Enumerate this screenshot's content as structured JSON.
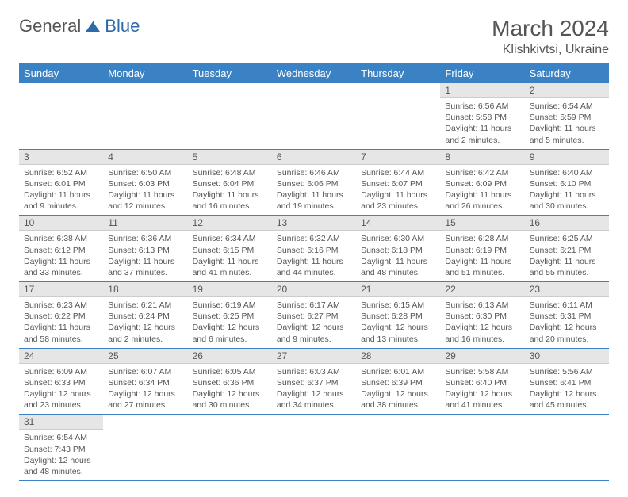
{
  "logo": {
    "text1": "General",
    "text2": "Blue"
  },
  "title": "March 2024",
  "location": "Klishkivtsi, Ukraine",
  "colors": {
    "header_bg": "#3b82c4",
    "header_text": "#ffffff",
    "daynum_bg": "#e6e6e6",
    "text": "#555555",
    "row_border": "#3b82c4",
    "logo_blue": "#2f6aa8"
  },
  "weekdays": [
    "Sunday",
    "Monday",
    "Tuesday",
    "Wednesday",
    "Thursday",
    "Friday",
    "Saturday"
  ],
  "first_day_index": 5,
  "days": [
    {
      "n": 1,
      "sunrise": "6:56 AM",
      "sunset": "5:58 PM",
      "daylight": "11 hours and 2 minutes."
    },
    {
      "n": 2,
      "sunrise": "6:54 AM",
      "sunset": "5:59 PM",
      "daylight": "11 hours and 5 minutes."
    },
    {
      "n": 3,
      "sunrise": "6:52 AM",
      "sunset": "6:01 PM",
      "daylight": "11 hours and 9 minutes."
    },
    {
      "n": 4,
      "sunrise": "6:50 AM",
      "sunset": "6:03 PM",
      "daylight": "11 hours and 12 minutes."
    },
    {
      "n": 5,
      "sunrise": "6:48 AM",
      "sunset": "6:04 PM",
      "daylight": "11 hours and 16 minutes."
    },
    {
      "n": 6,
      "sunrise": "6:46 AM",
      "sunset": "6:06 PM",
      "daylight": "11 hours and 19 minutes."
    },
    {
      "n": 7,
      "sunrise": "6:44 AM",
      "sunset": "6:07 PM",
      "daylight": "11 hours and 23 minutes."
    },
    {
      "n": 8,
      "sunrise": "6:42 AM",
      "sunset": "6:09 PM",
      "daylight": "11 hours and 26 minutes."
    },
    {
      "n": 9,
      "sunrise": "6:40 AM",
      "sunset": "6:10 PM",
      "daylight": "11 hours and 30 minutes."
    },
    {
      "n": 10,
      "sunrise": "6:38 AM",
      "sunset": "6:12 PM",
      "daylight": "11 hours and 33 minutes."
    },
    {
      "n": 11,
      "sunrise": "6:36 AM",
      "sunset": "6:13 PM",
      "daylight": "11 hours and 37 minutes."
    },
    {
      "n": 12,
      "sunrise": "6:34 AM",
      "sunset": "6:15 PM",
      "daylight": "11 hours and 41 minutes."
    },
    {
      "n": 13,
      "sunrise": "6:32 AM",
      "sunset": "6:16 PM",
      "daylight": "11 hours and 44 minutes."
    },
    {
      "n": 14,
      "sunrise": "6:30 AM",
      "sunset": "6:18 PM",
      "daylight": "11 hours and 48 minutes."
    },
    {
      "n": 15,
      "sunrise": "6:28 AM",
      "sunset": "6:19 PM",
      "daylight": "11 hours and 51 minutes."
    },
    {
      "n": 16,
      "sunrise": "6:25 AM",
      "sunset": "6:21 PM",
      "daylight": "11 hours and 55 minutes."
    },
    {
      "n": 17,
      "sunrise": "6:23 AM",
      "sunset": "6:22 PM",
      "daylight": "11 hours and 58 minutes."
    },
    {
      "n": 18,
      "sunrise": "6:21 AM",
      "sunset": "6:24 PM",
      "daylight": "12 hours and 2 minutes."
    },
    {
      "n": 19,
      "sunrise": "6:19 AM",
      "sunset": "6:25 PM",
      "daylight": "12 hours and 6 minutes."
    },
    {
      "n": 20,
      "sunrise": "6:17 AM",
      "sunset": "6:27 PM",
      "daylight": "12 hours and 9 minutes."
    },
    {
      "n": 21,
      "sunrise": "6:15 AM",
      "sunset": "6:28 PM",
      "daylight": "12 hours and 13 minutes."
    },
    {
      "n": 22,
      "sunrise": "6:13 AM",
      "sunset": "6:30 PM",
      "daylight": "12 hours and 16 minutes."
    },
    {
      "n": 23,
      "sunrise": "6:11 AM",
      "sunset": "6:31 PM",
      "daylight": "12 hours and 20 minutes."
    },
    {
      "n": 24,
      "sunrise": "6:09 AM",
      "sunset": "6:33 PM",
      "daylight": "12 hours and 23 minutes."
    },
    {
      "n": 25,
      "sunrise": "6:07 AM",
      "sunset": "6:34 PM",
      "daylight": "12 hours and 27 minutes."
    },
    {
      "n": 26,
      "sunrise": "6:05 AM",
      "sunset": "6:36 PM",
      "daylight": "12 hours and 30 minutes."
    },
    {
      "n": 27,
      "sunrise": "6:03 AM",
      "sunset": "6:37 PM",
      "daylight": "12 hours and 34 minutes."
    },
    {
      "n": 28,
      "sunrise": "6:01 AM",
      "sunset": "6:39 PM",
      "daylight": "12 hours and 38 minutes."
    },
    {
      "n": 29,
      "sunrise": "5:58 AM",
      "sunset": "6:40 PM",
      "daylight": "12 hours and 41 minutes."
    },
    {
      "n": 30,
      "sunrise": "5:56 AM",
      "sunset": "6:41 PM",
      "daylight": "12 hours and 45 minutes."
    },
    {
      "n": 31,
      "sunrise": "6:54 AM",
      "sunset": "7:43 PM",
      "daylight": "12 hours and 48 minutes."
    }
  ],
  "labels": {
    "sunrise": "Sunrise:",
    "sunset": "Sunset:",
    "daylight": "Daylight:"
  }
}
